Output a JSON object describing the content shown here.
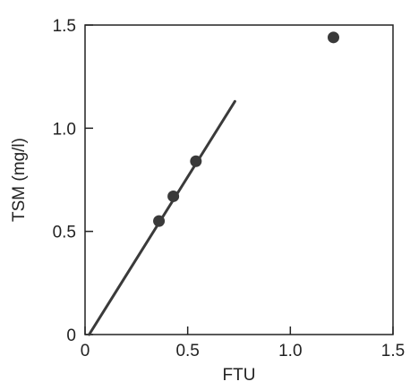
{
  "chart_data": {
    "type": "scatter",
    "title": "",
    "xlabel": "FTU",
    "ylabel": "TSM (mg/l)",
    "xlim": [
      0,
      1.5
    ],
    "ylim": [
      0,
      1.5
    ],
    "x_ticks": [
      {
        "value": 0,
        "label": "0"
      },
      {
        "value": 0.5,
        "label": "0.5"
      },
      {
        "value": 1.0,
        "label": "1.0"
      },
      {
        "value": 1.5,
        "label": "1.5"
      }
    ],
    "y_ticks": [
      {
        "value": 0,
        "label": "0"
      },
      {
        "value": 0.5,
        "label": "0.5"
      },
      {
        "value": 1.0,
        "label": "1.0"
      },
      {
        "value": 1.5,
        "label": "1.5"
      }
    ],
    "grid": false,
    "points": [
      {
        "x": 0.36,
        "y": 0.55
      },
      {
        "x": 0.43,
        "y": 0.67
      },
      {
        "x": 0.54,
        "y": 0.84
      },
      {
        "x": 1.21,
        "y": 1.44
      }
    ],
    "fit_line": {
      "x": [
        0.02,
        0.73
      ],
      "y": [
        0.0,
        1.13
      ]
    },
    "colors": {
      "marks": "#3a3a3a",
      "axes": "#222222"
    }
  }
}
